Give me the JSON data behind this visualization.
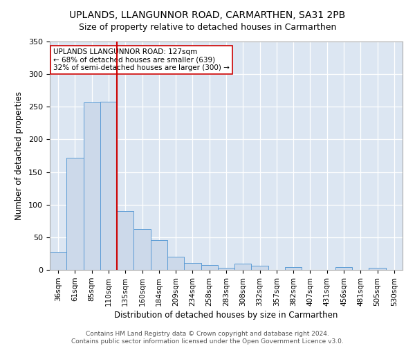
{
  "title": "UPLANDS, LLANGUNNOR ROAD, CARMARTHEN, SA31 2PB",
  "subtitle": "Size of property relative to detached houses in Carmarthen",
  "xlabel": "Distribution of detached houses by size in Carmarthen",
  "ylabel": "Number of detached properties",
  "bin_labels": [
    "36sqm",
    "61sqm",
    "85sqm",
    "110sqm",
    "135sqm",
    "160sqm",
    "184sqm",
    "209sqm",
    "234sqm",
    "258sqm",
    "283sqm",
    "308sqm",
    "332sqm",
    "357sqm",
    "382sqm",
    "407sqm",
    "431sqm",
    "456sqm",
    "481sqm",
    "505sqm",
    "530sqm"
  ],
  "bar_values": [
    28,
    172,
    257,
    258,
    90,
    63,
    46,
    20,
    11,
    7,
    3,
    10,
    6,
    0,
    4,
    0,
    0,
    4,
    0,
    3,
    0
  ],
  "bar_color": "#ccd9ea",
  "bar_edge_color": "#5b9bd5",
  "vline_x_index": 4,
  "vline_color": "#cc0000",
  "annotation_text": "UPLANDS LLANGUNNOR ROAD: 127sqm\n← 68% of detached houses are smaller (639)\n32% of semi-detached houses are larger (300) →",
  "annotation_box_color": "white",
  "annotation_box_edge": "#cc0000",
  "fig_bg_color": "#ffffff",
  "plot_bg_color": "#dce6f2",
  "grid_color": "#ffffff",
  "footer_line1": "Contains HM Land Registry data © Crown copyright and database right 2024.",
  "footer_line2": "Contains public sector information licensed under the Open Government Licence v3.0.",
  "ylim": [
    0,
    350
  ],
  "yticks": [
    0,
    50,
    100,
    150,
    200,
    250,
    300,
    350
  ],
  "title_fontsize": 10,
  "subtitle_fontsize": 9,
  "axis_label_fontsize": 8.5,
  "tick_fontsize": 7.5,
  "annotation_fontsize": 7.5,
  "footer_fontsize": 6.5
}
